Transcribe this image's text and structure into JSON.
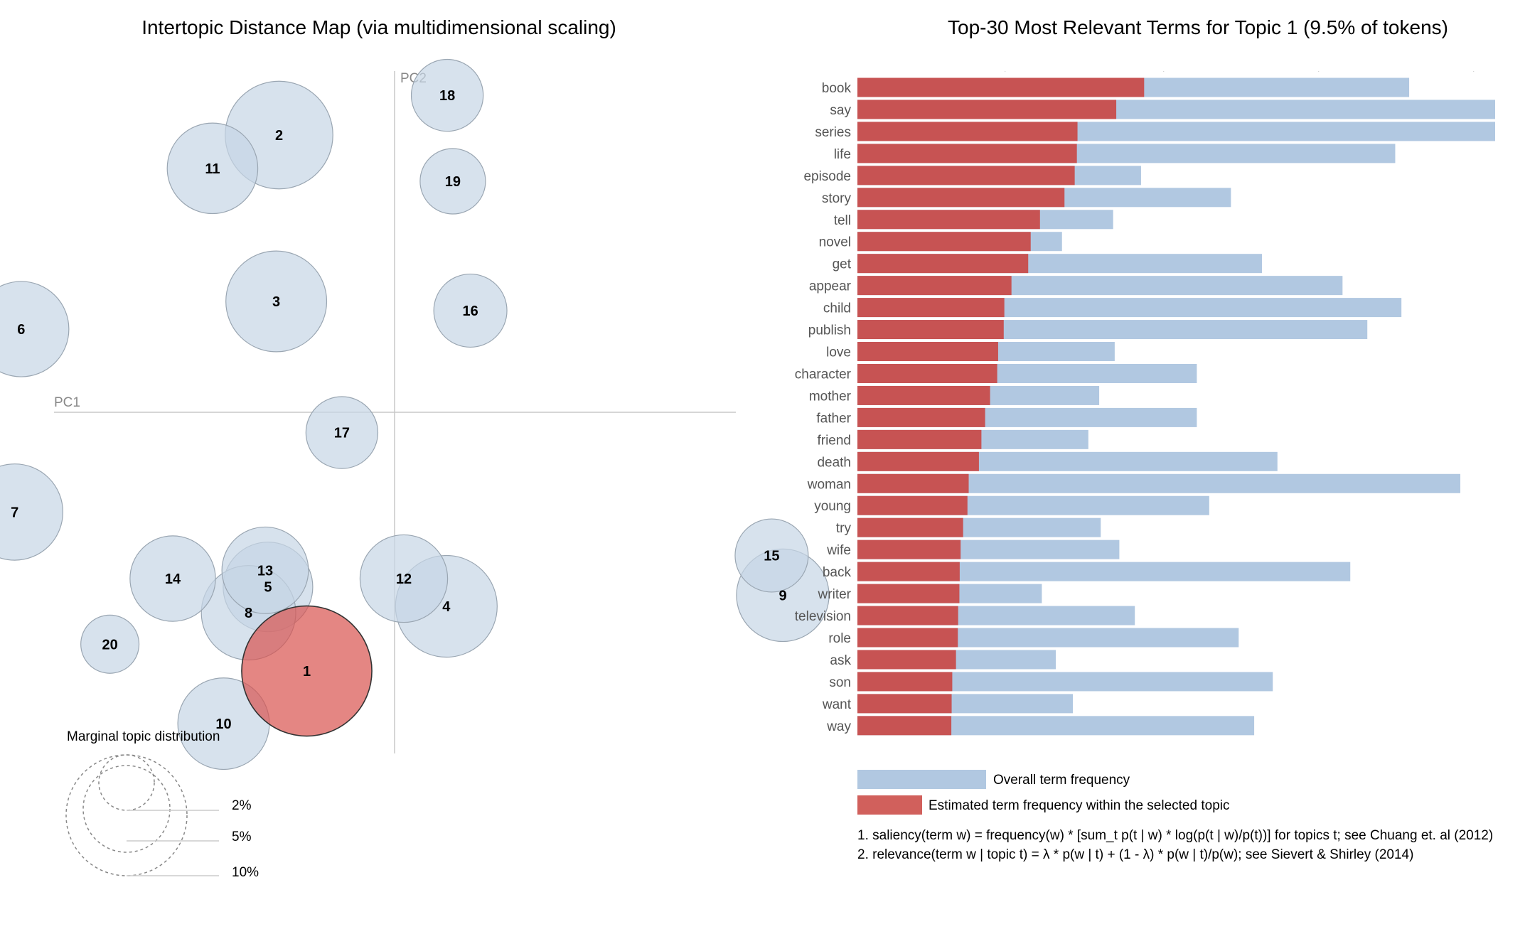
{
  "colors": {
    "bubble_fill": "#c6d6e6",
    "bubble_stroke": "#9aa6b2",
    "selected_fill": "#d9534f",
    "overall_bar": "#b1c8e1",
    "topic_bar": "#c75353",
    "legend_topic_bar": "#d1605c",
    "axis_line": "#c8c8c8"
  },
  "map": {
    "title": "Intertopic Distance Map (via multidimensional scaling)",
    "x_axis_label": "PC1",
    "y_axis_label": "PC2",
    "selected_topic": "1",
    "marginal_title": "Marginal topic distribution",
    "marginal_labels": [
      "2%",
      "5%",
      "10%"
    ]
  },
  "chart_data": [
    {
      "type": "scatter",
      "title": "Intertopic Distance Map (via multidimensional scaling)",
      "xlabel": "PC1",
      "ylabel": "PC2",
      "xlim": [
        -0.44,
        0.46
      ],
      "ylim": [
        -0.46,
        0.46
      ],
      "grid": false,
      "points": [
        {
          "label": "1",
          "x": -0.095,
          "y": -0.28,
          "size_pct": 9.5
        },
        {
          "label": "2",
          "x": -0.125,
          "y": 0.3,
          "size_pct": 6.5
        },
        {
          "label": "3",
          "x": -0.128,
          "y": 0.12,
          "size_pct": 5.7
        },
        {
          "label": "4",
          "x": 0.056,
          "y": -0.21,
          "size_pct": 5.8
        },
        {
          "label": "5",
          "x": -0.137,
          "y": -0.189,
          "size_pct": 4.5
        },
        {
          "label": "6",
          "x": -0.404,
          "y": 0.09,
          "size_pct": 5.1
        },
        {
          "label": "7",
          "x": -0.411,
          "y": -0.108,
          "size_pct": 5.2
        },
        {
          "label": "8",
          "x": -0.158,
          "y": -0.217,
          "size_pct": 5.0
        },
        {
          "label": "9",
          "x": 0.42,
          "y": -0.198,
          "size_pct": 4.8
        },
        {
          "label": "10",
          "x": -0.185,
          "y": -0.337,
          "size_pct": 4.7
        },
        {
          "label": "11",
          "x": -0.197,
          "y": 0.264,
          "size_pct": 4.6
        },
        {
          "label": "12",
          "x": 0.01,
          "y": -0.18,
          "size_pct": 4.3
        },
        {
          "label": "13",
          "x": -0.14,
          "y": -0.171,
          "size_pct": 4.2
        },
        {
          "label": "14",
          "x": -0.24,
          "y": -0.18,
          "size_pct": 4.1
        },
        {
          "label": "15",
          "x": 0.408,
          "y": -0.155,
          "size_pct": 3.0
        },
        {
          "label": "16",
          "x": 0.082,
          "y": 0.11,
          "size_pct": 3.0
        },
        {
          "label": "17",
          "x": -0.057,
          "y": -0.022,
          "size_pct": 2.9
        },
        {
          "label": "18",
          "x": 0.057,
          "y": 0.343,
          "size_pct": 2.9
        },
        {
          "label": "19",
          "x": 0.063,
          "y": 0.25,
          "size_pct": 2.4
        },
        {
          "label": "20",
          "x": -0.308,
          "y": -0.251,
          "size_pct": 1.9
        }
      ]
    },
    {
      "type": "bar",
      "orientation": "horizontal",
      "title": "Top-30 Most Relevant Terms for Topic 1 (9.5% of tokens)",
      "xlim": [
        0,
        20000
      ],
      "x_ticks": [
        "0",
        "5,000",
        "10,000",
        "15,000",
        "20,000"
      ],
      "categories": [
        "book",
        "say",
        "series",
        "life",
        "episode",
        "story",
        "tell",
        "novel",
        "get",
        "appear",
        "child",
        "publish",
        "love",
        "character",
        "mother",
        "father",
        "friend",
        "death",
        "woman",
        "young",
        "try",
        "wife",
        "back",
        "writer",
        "television",
        "role",
        "ask",
        "son",
        "want",
        "way"
      ],
      "series": [
        {
          "name": "Overall term frequency",
          "values": [
            17800,
            20600,
            20600,
            17350,
            9150,
            12050,
            8250,
            6600,
            13050,
            15650,
            17550,
            16450,
            8300,
            10950,
            7800,
            10950,
            7450,
            13550,
            19450,
            11350,
            7850,
            8450,
            15900,
            5950,
            8950,
            12300,
            6400,
            13400,
            6950,
            12800
          ]
        },
        {
          "name": "Estimated term frequency within the selected topic",
          "values": [
            9250,
            8350,
            7100,
            7080,
            7010,
            6680,
            5890,
            5590,
            5510,
            4970,
            4740,
            4720,
            4540,
            4510,
            4280,
            4120,
            4000,
            3920,
            3590,
            3550,
            3410,
            3330,
            3300,
            3290,
            3250,
            3240,
            3180,
            3060,
            3040,
            3030
          ]
        }
      ]
    }
  ],
  "legend": {
    "overall": "Overall term frequency",
    "topic": "Estimated term frequency within the selected topic"
  },
  "notes": {
    "saliency": "1. saliency(term w) = frequency(w) * [sum_t p(t | w) * log(p(t | w)/p(t))] for topics t; see Chuang et. al (2012)",
    "relevance": "2. relevance(term w | topic t) = λ * p(w | t) + (1 - λ) * p(w | t)/p(w); see Sievert & Shirley (2014)"
  }
}
